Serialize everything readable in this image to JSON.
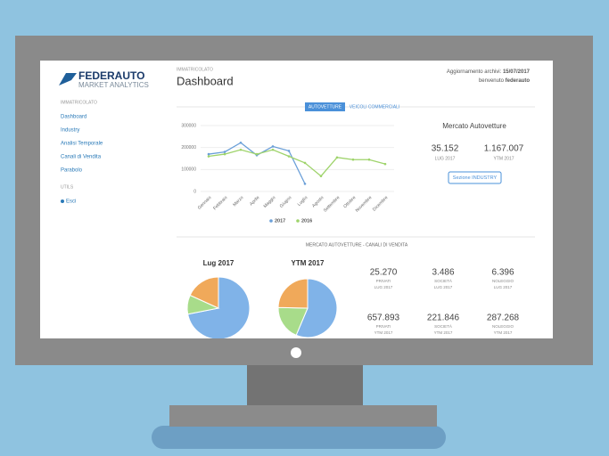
{
  "header": {
    "logo_title": "FEDERAUTO",
    "logo_subtitle": "MARKET ANALYTICS",
    "section": "IMMATRICOLATO",
    "title": "Dashboard",
    "archive_label": "Aggiornamento archivi:",
    "archive_date": "15/07/2017",
    "welcome": "benvenuto",
    "user": "federauto"
  },
  "sidebar": {
    "section": "IMMATRICOLATO",
    "items": [
      "Dashboard",
      "Industry",
      "Analisi Temporale",
      "Canali di Vendita",
      "Parabolo"
    ],
    "utils": "UTILS",
    "exit": "Esci"
  },
  "tabs": [
    "AUTOVETTURE",
    "VEICOLI COMMERCIALI"
  ],
  "chart_data": {
    "type": "line",
    "categories": [
      "Gennaio",
      "Febbraio",
      "Marzo",
      "Aprile",
      "Maggio",
      "Giugno",
      "Luglio",
      "Agosto",
      "Settembre",
      "Ottobre",
      "Novembre",
      "Dicembre"
    ],
    "series": [
      {
        "name": "2017",
        "color": "#6a9fd8",
        "values": [
          170000,
          180000,
          222000,
          165000,
          205000,
          185000,
          35000,
          null,
          null,
          null,
          null,
          null
        ]
      },
      {
        "name": "2016",
        "color": "#9ed36a",
        "values": [
          160000,
          170000,
          190000,
          170000,
          190000,
          160000,
          130000,
          70000,
          155000,
          145000,
          145000,
          125000
        ]
      }
    ],
    "ylim": [
      0,
      300000
    ],
    "yticks": [
      0,
      100000,
      200000,
      300000
    ],
    "grid": true
  },
  "summary": {
    "title": "Mercato Autovetture",
    "stats": [
      {
        "value": 35152,
        "label": "35.152",
        "caption": "LUG 2017"
      },
      {
        "value": 1167007,
        "label": "1.167.007",
        "caption": "YTM 2017"
      }
    ],
    "button": "Sezione INDUSTRY"
  },
  "channels": {
    "title": "MERCATO AUTOVETTURE - CANALI DI VENDITA",
    "colors": [
      "#80b3e8",
      "#a8dc8a",
      "#f0a95a"
    ],
    "rows": [
      {
        "title": "Lug 2017",
        "stats": [
          {
            "value": 25270,
            "label": "25.270",
            "name": "PRIVATI",
            "period": "LUG 2017"
          },
          {
            "value": 3486,
            "label": "3.486",
            "name": "SOCIETÀ",
            "period": "LUG 2017"
          },
          {
            "value": 6396,
            "label": "6.396",
            "name": "NOLEGGIO",
            "period": "LUG 2017"
          }
        ]
      },
      {
        "title": "YTM 2017",
        "stats": [
          {
            "value": 657893,
            "label": "657.893",
            "name": "PRIVATI",
            "period": "YTM 2017"
          },
          {
            "value": 221846,
            "label": "221.846",
            "name": "SOCIETÀ",
            "period": "YTM 2017"
          },
          {
            "value": 287268,
            "label": "287.268",
            "name": "NOLEGGIO",
            "period": "YTM 2017"
          }
        ]
      }
    ]
  }
}
